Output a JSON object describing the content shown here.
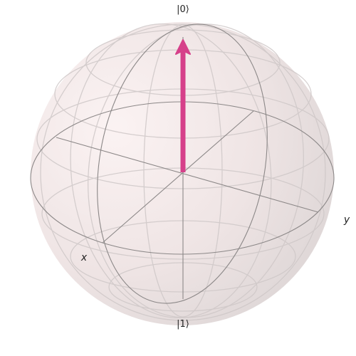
{
  "bloch_sphere": {
    "state_labels": {
      "top": "|0⟩",
      "bottom": "|1⟩"
    },
    "axis_labels": {
      "x": "x",
      "y": "y"
    },
    "colors": {
      "sphere_fill": "#f3e1e1",
      "sphere_shade": "#dcd4d4",
      "back_wire": "#c8c2c2",
      "front_wire": "#8a8686",
      "state_vector": "#d6408a"
    }
  }
}
